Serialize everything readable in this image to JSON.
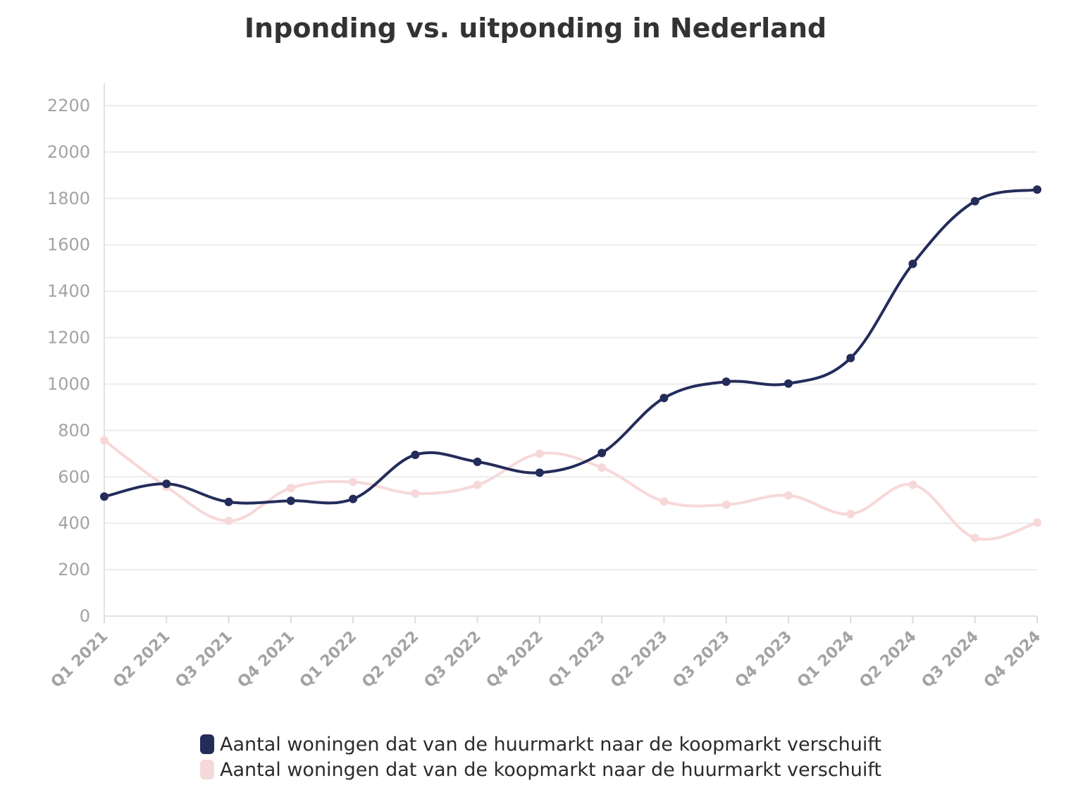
{
  "chart_data": {
    "type": "line",
    "title": "Inponding vs. uitponding in Nederland",
    "categories": [
      "Q1 2021",
      "Q2 2021",
      "Q3 2021",
      "Q4 2021",
      "Q1 2022",
      "Q2 2022",
      "Q3 2022",
      "Q4 2022",
      "Q1 2023",
      "Q2 2023",
      "Q3 2023",
      "Q4 2023",
      "Q1 2024",
      "Q2 2024",
      "Q3 2024",
      "Q4 2024"
    ],
    "ylim": [
      0,
      2200
    ],
    "yticks": [
      0,
      200,
      400,
      600,
      800,
      1000,
      1200,
      1400,
      1600,
      1800,
      2000,
      2200
    ],
    "grid": true,
    "legend_position": "bottom",
    "series": [
      {
        "name": "Aantal woningen dat van de huurmarkt naar de koopmarkt verschuift",
        "color": "#242c5a",
        "values": [
          515,
          570,
          492,
          497,
          505,
          695,
          665,
          618,
          703,
          940,
          1010,
          1002,
          1112,
          1518,
          1788,
          1838
        ]
      },
      {
        "name": "Aantal woningen dat van de koopmarkt naar de huurmarkt verschuift",
        "color": "#f7d8d8",
        "values": [
          757,
          557,
          410,
          552,
          578,
          528,
          565,
          700,
          640,
          494,
          480,
          520,
          440,
          566,
          337,
          403
        ]
      }
    ]
  }
}
